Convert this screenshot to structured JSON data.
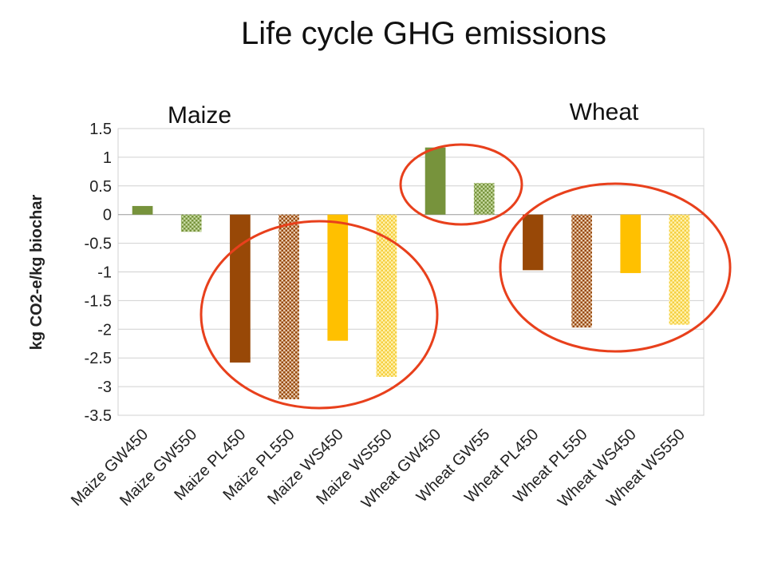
{
  "chart_data": {
    "type": "bar",
    "title": "Life cycle GHG emissions",
    "ylabel": "kg CO2-e/kg biochar",
    "xlabel": "",
    "ylim": [
      -3.5,
      1.5
    ],
    "yticks": [
      "1.5",
      "1",
      "0.5",
      "0",
      "-0.5",
      "-1",
      "-1.5",
      "-2",
      "-2.5",
      "-3",
      "-3.5"
    ],
    "grid": true,
    "group_labels": [
      "Maize",
      "Wheat"
    ],
    "categories": [
      "Maize GW450",
      "Maize GW550",
      "Maize PL450",
      "Maize PL550",
      "Maize WS450",
      "Maize WS550",
      "Wheat GW450",
      "Wheat GW55",
      "Wheat PL450",
      "Wheat PL550",
      "Wheat WS450",
      "Wheat WS550"
    ],
    "values": [
      0.15,
      -0.3,
      -2.58,
      -3.22,
      -2.2,
      -2.83,
      1.17,
      0.55,
      -0.97,
      -1.97,
      -1.02,
      -1.92
    ],
    "bar_styles": [
      {
        "color": "#77933c",
        "pattern": "solid"
      },
      {
        "color": "#77933c",
        "pattern": "checker"
      },
      {
        "color": "#984807",
        "pattern": "solid"
      },
      {
        "color": "#984807",
        "pattern": "checker"
      },
      {
        "color": "#ffc000",
        "pattern": "solid"
      },
      {
        "color": "#ffc000",
        "pattern": "checker-light"
      },
      {
        "color": "#77933c",
        "pattern": "solid"
      },
      {
        "color": "#77933c",
        "pattern": "checker"
      },
      {
        "color": "#984807",
        "pattern": "solid"
      },
      {
        "color": "#984807",
        "pattern": "checker"
      },
      {
        "color": "#ffc000",
        "pattern": "solid"
      },
      {
        "color": "#ffc000",
        "pattern": "checker-light"
      }
    ],
    "highlight_color": "#e8401c"
  }
}
